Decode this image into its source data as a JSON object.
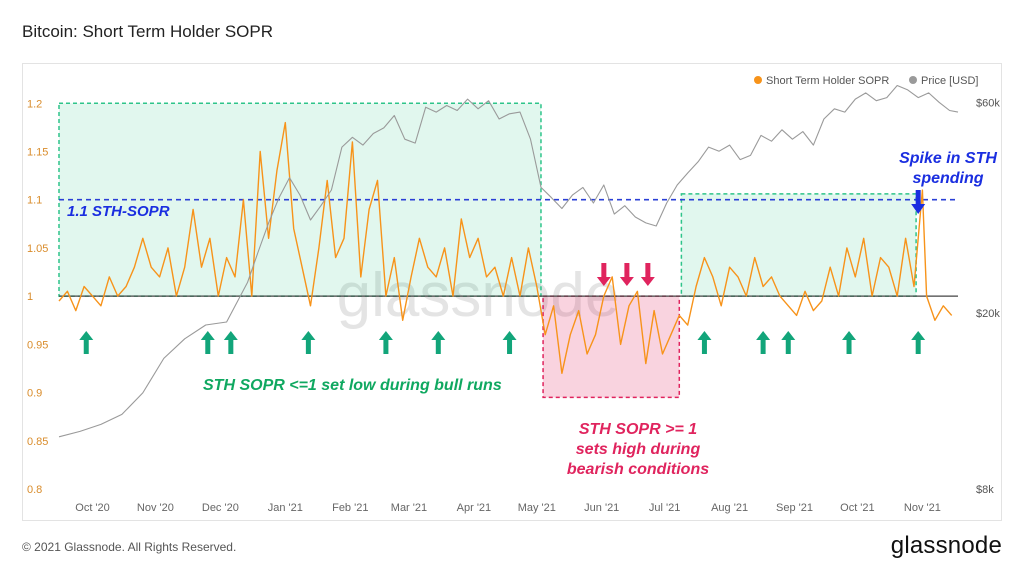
{
  "header": {
    "title": "Bitcoin: Short Term Holder SOPR"
  },
  "footer": {
    "copyright": "© 2021 Glassnode. All Rights Reserved.",
    "logo": "glassnode"
  },
  "watermark": "glassnode",
  "colors": {
    "sopr": "#f7931a",
    "price": "#9a9a9a",
    "baseline": "#444444",
    "threshold": "#2a3fd6",
    "green_zone": "#2ec48a",
    "red_zone": "#e0245e",
    "arrow_green": "#12a57a",
    "arrow_red": "#e0245e",
    "arrow_blue": "#1a2ee0"
  },
  "chart_data": {
    "type": "line",
    "title": "Bitcoin: Short Term Holder SOPR",
    "x_tick_labels": [
      "Oct '20",
      "Nov '20",
      "Dec '20",
      "Jan '21",
      "Feb '21",
      "Mar '21",
      "Apr '21",
      "May '21",
      "Jun '21",
      "Jul '21",
      "Aug '21",
      "Sep '21",
      "Oct '21",
      "Nov '21"
    ],
    "x_tick_days": [
      16,
      46,
      77,
      108,
      139,
      167,
      198,
      228,
      259,
      289,
      320,
      351,
      381,
      412
    ],
    "x_range_days": [
      0,
      429
    ],
    "left_axis": {
      "ticks": [
        0.8,
        0.85,
        0.9,
        0.95,
        1,
        1.05,
        1.1,
        1.15,
        1.2
      ],
      "range": [
        0.8,
        1.22
      ]
    },
    "right_axis": {
      "ticks": [
        "$60k",
        "$20k",
        "$8k"
      ],
      "scale": "log",
      "range_usd": [
        8000,
        66000
      ],
      "tick_values": [
        60000,
        20000,
        8000
      ]
    },
    "legend": {
      "position": "top-right",
      "items": [
        "Short Term Holder SOPR",
        "Price [USD]"
      ]
    },
    "series": [
      {
        "name": "Short Term Holder SOPR",
        "axis": "left",
        "days": [
          0,
          4,
          8,
          12,
          16,
          20,
          24,
          28,
          32,
          36,
          40,
          44,
          48,
          52,
          56,
          60,
          64,
          68,
          72,
          76,
          80,
          84,
          88,
          92,
          96,
          100,
          104,
          108,
          112,
          116,
          120,
          124,
          128,
          132,
          136,
          140,
          144,
          148,
          152,
          156,
          160,
          164,
          168,
          172,
          176,
          180,
          184,
          188,
          192,
          196,
          200,
          204,
          208,
          212,
          216,
          220,
          224,
          228,
          232,
          236,
          240,
          244,
          248,
          252,
          256,
          260,
          264,
          268,
          272,
          276,
          280,
          284,
          288,
          292,
          296,
          300,
          304,
          308,
          312,
          316,
          320,
          324,
          328,
          332,
          336,
          340,
          344,
          348,
          352,
          356,
          360,
          364,
          368,
          372,
          376,
          380,
          384,
          388,
          392,
          396,
          400,
          404,
          408,
          412,
          414,
          418,
          422,
          426
        ],
        "values": [
          0.995,
          1.005,
          0.985,
          1.01,
          1.0,
          0.99,
          1.02,
          1.0,
          1.01,
          1.03,
          1.06,
          1.03,
          1.02,
          1.05,
          1.0,
          1.03,
          1.09,
          1.03,
          1.06,
          1.0,
          1.04,
          1.02,
          1.1,
          1.0,
          1.15,
          1.06,
          1.13,
          1.18,
          1.07,
          1.03,
          0.99,
          1.05,
          1.12,
          1.04,
          1.06,
          1.16,
          1.02,
          1.09,
          1.12,
          1.0,
          1.04,
          0.975,
          1.02,
          1.06,
          1.03,
          1.02,
          1.05,
          1.0,
          1.08,
          1.04,
          1.06,
          1.02,
          1.03,
          1.0,
          1.04,
          1.0,
          1.05,
          1.01,
          0.96,
          0.99,
          0.92,
          0.96,
          0.985,
          0.94,
          0.96,
          1.0,
          1.02,
          0.95,
          0.99,
          1.005,
          0.93,
          0.985,
          0.94,
          0.96,
          0.98,
          0.97,
          1.01,
          1.04,
          1.02,
          0.99,
          1.03,
          1.02,
          1.0,
          1.04,
          1.01,
          1.02,
          1.0,
          0.99,
          0.98,
          1.005,
          0.985,
          0.995,
          1.03,
          1.0,
          1.05,
          1.02,
          1.06,
          1.0,
          1.04,
          1.03,
          1.0,
          1.06,
          1.01,
          1.11,
          1.0,
          0.975,
          0.99,
          0.98
        ]
      },
      {
        "name": "Price [USD]",
        "axis": "right",
        "days": [
          0,
          10,
          20,
          30,
          40,
          50,
          60,
          70,
          80,
          90,
          95,
          100,
          105,
          110,
          115,
          120,
          125,
          130,
          135,
          140,
          145,
          150,
          155,
          160,
          165,
          170,
          175,
          180,
          185,
          190,
          195,
          200,
          205,
          210,
          215,
          220,
          225,
          230,
          235,
          240,
          245,
          250,
          255,
          260,
          265,
          270,
          275,
          280,
          285,
          290,
          295,
          300,
          305,
          310,
          315,
          320,
          325,
          330,
          335,
          340,
          345,
          350,
          355,
          360,
          365,
          370,
          375,
          380,
          385,
          390,
          395,
          400,
          405,
          410,
          415,
          420,
          425,
          429
        ],
        "values": [
          10500,
          10800,
          11200,
          11800,
          13200,
          15800,
          17500,
          18800,
          19100,
          23500,
          27500,
          32000,
          36500,
          40500,
          37000,
          32500,
          35000,
          38000,
          47500,
          50000,
          48000,
          51000,
          52500,
          56000,
          49500,
          48500,
          58500,
          57000,
          59000,
          57500,
          61000,
          58000,
          60500,
          55000,
          56500,
          57000,
          49500,
          38500,
          36500,
          34500,
          37000,
          38500,
          35500,
          39000,
          33500,
          35000,
          33000,
          32000,
          31500,
          35500,
          39000,
          41500,
          44000,
          47500,
          46500,
          48000,
          44500,
          45500,
          50500,
          49000,
          52000,
          49500,
          51500,
          48000,
          55000,
          58000,
          57000,
          61000,
          63000,
          60500,
          61500,
          65500,
          64000,
          61500,
          63000,
          60000,
          57500,
          57000
        ]
      }
    ],
    "threshold_line": {
      "value": 1.1,
      "label": "1.1 STH-SOPR"
    },
    "baseline": 1.0,
    "zones": [
      {
        "kind": "green",
        "x_days": [
          0,
          230
        ],
        "y_range": [
          1.0,
          1.2
        ]
      },
      {
        "kind": "red",
        "x_days": [
          231,
          296
        ],
        "y_range": [
          0.895,
          1.0
        ]
      },
      {
        "kind": "green",
        "x_days": [
          297,
          409
        ],
        "y_range": [
          1.0,
          1.106
        ]
      }
    ],
    "up_arrows_days": [
      13,
      71,
      82,
      119,
      156,
      181,
      215,
      308,
      336,
      348,
      377,
      410
    ],
    "down_arrows_days": [
      260,
      271,
      281
    ],
    "spike_arrow_day": 410,
    "annotations": [
      {
        "text": "STH SOPR <=1 set low during bull runs",
        "color": "green"
      },
      {
        "lines": [
          "STH SOPR >= 1",
          "sets high during",
          "bearish conditions"
        ],
        "color": "red"
      },
      {
        "lines": [
          "Spike in STH",
          "spending"
        ],
        "color": "blue"
      }
    ]
  }
}
